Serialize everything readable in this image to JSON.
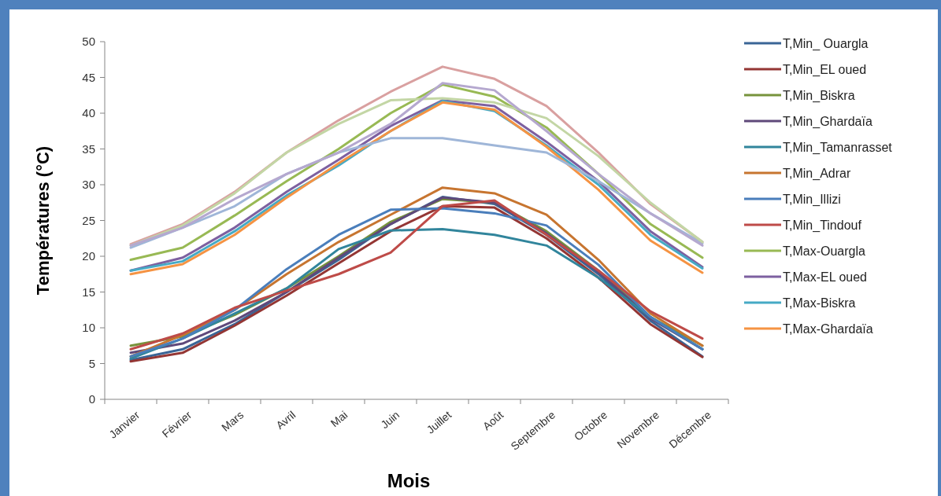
{
  "chart_data": {
    "type": "line",
    "xlabel": "Mois",
    "ylabel": "Températures (°C)",
    "categories": [
      "Janvier",
      "Février",
      "Mars",
      "Avril",
      "Mai",
      "Juin",
      "Juillet",
      "Août",
      "Septembre",
      "Octobre",
      "Novembre",
      "Décembre"
    ],
    "ylim": [
      0,
      50
    ],
    "yticks": [
      0,
      5,
      10,
      15,
      20,
      25,
      30,
      35,
      40,
      45,
      50
    ],
    "grid": false,
    "legend": "right",
    "marker": "none",
    "line_style": "solid",
    "series": [
      {
        "name": "T,Min_ Ouargla",
        "color": "#3a6596",
        "values": [
          5.5,
          7,
          10.5,
          15,
          19.5,
          24.5,
          28.3,
          27.3,
          23,
          17.5,
          11,
          6
        ]
      },
      {
        "name": "T,Min_EL oued",
        "color": "#943634",
        "values": [
          5.3,
          6.5,
          10.3,
          14.5,
          19,
          23.5,
          27,
          26.8,
          22.5,
          17,
          10.5,
          5.9
        ]
      },
      {
        "name": "T,Min_Biskra",
        "color": "#77933c",
        "values": [
          7.5,
          8.8,
          11.8,
          15.5,
          20,
          24.8,
          28,
          27.5,
          23.5,
          18,
          11.5,
          7.5
        ]
      },
      {
        "name": "T,Min_Ghardaïa",
        "color": "#5f497a",
        "values": [
          6.5,
          7.8,
          11,
          15,
          19.8,
          24.5,
          28.2,
          27.5,
          23.2,
          17.8,
          11.3,
          7
        ]
      },
      {
        "name": "T,Min_Tamanrasset",
        "color": "#31859c",
        "values": [
          5.7,
          8.5,
          12,
          15.5,
          21,
          23.6,
          23.8,
          23,
          21.5,
          17,
          11.5,
          7
        ]
      },
      {
        "name": "T,Min_Adrar",
        "color": "#c77530",
        "values": [
          6,
          9,
          12.5,
          17.5,
          22,
          25.8,
          29.6,
          28.8,
          25.8,
          19.5,
          12,
          7.5
        ]
      },
      {
        "name": "T,Min_Illizi",
        "color": "#4a7ebb",
        "values": [
          6,
          8.5,
          12.5,
          18.2,
          23,
          26.5,
          26.7,
          26,
          24.3,
          18.8,
          11.5,
          7
        ]
      },
      {
        "name": "T,Min_Tindouf",
        "color": "#be4b48",
        "values": [
          7,
          9.2,
          12.8,
          15.2,
          17.5,
          20.5,
          27,
          27.8,
          23,
          18,
          12.3,
          8.5
        ]
      },
      {
        "name": "T,Max-Ouargla",
        "color": "#98b954",
        "values": [
          19.5,
          21.2,
          25.7,
          30.5,
          35,
          40,
          44,
          42.3,
          38,
          31.5,
          24.5,
          19.8
        ]
      },
      {
        "name": "T,Max-EL oued",
        "color": "#7d60a0",
        "values": [
          18,
          19.8,
          24,
          29,
          33.5,
          38.2,
          41.8,
          41,
          36,
          30.5,
          23.5,
          18.5
        ]
      },
      {
        "name": "T,Max-Biskra",
        "color": "#46aac5",
        "values": [
          18,
          19.3,
          23.5,
          28.5,
          32.7,
          37.5,
          41.7,
          40.3,
          35.5,
          30,
          23,
          18.3
        ]
      },
      {
        "name": "T,Max-Ghardaïa",
        "color": "#f59343",
        "values": [
          17.5,
          18.9,
          23,
          28.2,
          33,
          37.5,
          41.5,
          40.5,
          35.3,
          29.3,
          22.2,
          17.7
        ]
      },
      {
        "color": "#9fb6d8",
        "values": [
          21.2,
          24,
          27,
          31.5,
          34.5,
          36.5,
          36.5,
          35.5,
          34.5,
          30.5,
          26,
          21.8
        ]
      },
      {
        "color": "#d9a0a0",
        "values": [
          21.7,
          24.5,
          29,
          34.5,
          39,
          43,
          46.5,
          44.8,
          41,
          34.5,
          27.3,
          22
        ]
      },
      {
        "color": "#c3d6a5",
        "values": [
          21.5,
          24.3,
          28.8,
          34.5,
          38.5,
          41.8,
          42.1,
          41.5,
          39.3,
          34,
          27.5,
          22
        ]
      },
      {
        "color": "#b5a8cf",
        "values": [
          21.5,
          24,
          28,
          31.5,
          34.5,
          38.5,
          44.2,
          43.2,
          37.5,
          31.5,
          26,
          21.5
        ]
      }
    ]
  }
}
